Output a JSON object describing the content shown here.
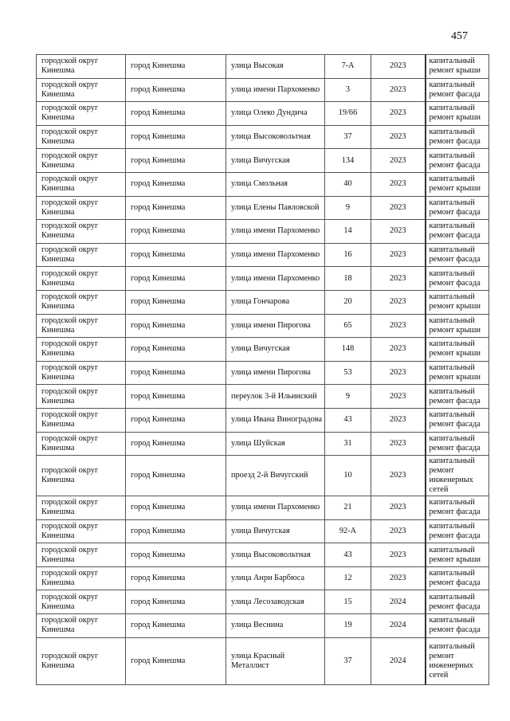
{
  "page_number": "457",
  "rows": [
    {
      "district": "городской округ Кинешма",
      "city": "город Кинешма",
      "street": "улица Высокая",
      "house": "7-А",
      "year": "2023",
      "work": "капитальный ремонт крыши"
    },
    {
      "district": "городской округ Кинешма",
      "city": "город Кинешма",
      "street": "улица имени Пархоменко",
      "house": "3",
      "year": "2023",
      "work": "капитальный ремонт фасада"
    },
    {
      "district": "городской округ Кинешма",
      "city": "город Кинешма",
      "street": "улица Олеко Дундича",
      "house": "19/66",
      "year": "2023",
      "work": "капитальный ремонт крыши"
    },
    {
      "district": "городской округ Кинешма",
      "city": "город Кинешма",
      "street": "улица Высоковольтная",
      "house": "37",
      "year": "2023",
      "work": "капитальный ремонт фасада"
    },
    {
      "district": "городской округ Кинешма",
      "city": "город Кинешма",
      "street": "улица Вичугская",
      "house": "134",
      "year": "2023",
      "work": "капитальный ремонт фасада"
    },
    {
      "district": "городской округ Кинешма",
      "city": "город Кинешма",
      "street": "улица Смольная",
      "house": "40",
      "year": "2023",
      "work": "капитальный ремонт крыши"
    },
    {
      "district": "городской округ Кинешма",
      "city": "город Кинешма",
      "street": "улица Елены Павловской",
      "house": "9",
      "year": "2023",
      "work": "капитальный ремонт фасада"
    },
    {
      "district": "городской округ Кинешма",
      "city": "город Кинешма",
      "street": "улица имени Пархоменко",
      "house": "14",
      "year": "2023",
      "work": "капитальный ремонт фасада"
    },
    {
      "district": "городской округ Кинешма",
      "city": "город Кинешма",
      "street": "улица имени Пархоменко",
      "house": "16",
      "year": "2023",
      "work": "капитальный ремонт фасада"
    },
    {
      "district": "городской округ Кинешма",
      "city": "город Кинешма",
      "street": "улица имени Пархоменко",
      "house": "18",
      "year": "2023",
      "work": "капитальный ремонт фасада"
    },
    {
      "district": "городской округ Кинешма",
      "city": "город Кинешма",
      "street": "улица Гончарова",
      "house": "20",
      "year": "2023",
      "work": "капитальный ремонт крыши"
    },
    {
      "district": "городской округ Кинешма",
      "city": "город Кинешма",
      "street": "улица имени Пирогова",
      "house": "65",
      "year": "2023",
      "work": "капитальный ремонт крыши"
    },
    {
      "district": "городской округ Кинешма",
      "city": "город Кинешма",
      "street": "улица Вичугская",
      "house": "148",
      "year": "2023",
      "work": "капитальный ремонт крыши"
    },
    {
      "district": "городской округ Кинешма",
      "city": "город Кинешма",
      "street": "улица имени Пирогова",
      "house": "53",
      "year": "2023",
      "work": "капитальный ремонт крыши"
    },
    {
      "district": "городской округ Кинешма",
      "city": "город Кинешма",
      "street": "переулок 3-й Ильинский",
      "house": "9",
      "year": "2023",
      "work": "капитальный ремонт фасада"
    },
    {
      "district": "городской округ Кинешма",
      "city": "город Кинешма",
      "street": "улица Ивана Виноградова",
      "house": "43",
      "year": "2023",
      "work": "капитальный ремонт фасада"
    },
    {
      "district": "городской округ Кинешма",
      "city": "город Кинешма",
      "street": "улица Шуйская",
      "house": "31",
      "year": "2023",
      "work": "капитальный ремонт фасада"
    },
    {
      "district": "городской округ Кинешма",
      "city": "город Кинешма",
      "street": "проезд 2-й Вичугский",
      "house": "10",
      "year": "2023",
      "work": "капитальный ремонт инженерных сетей"
    },
    {
      "district": "городской округ Кинешма",
      "city": "город Кинешма",
      "street": "улица имени Пархоменко",
      "house": "21",
      "year": "2023",
      "work": "капитальный ремонт фасада"
    },
    {
      "district": "городской округ Кинешма",
      "city": "город Кинешма",
      "street": "улица Вичугская",
      "house": "92-А",
      "year": "2023",
      "work": "капитальный ремонт фасада"
    },
    {
      "district": "городской округ Кинешма",
      "city": "город Кинешма",
      "street": "улица Высоковольтная",
      "house": "43",
      "year": "2023",
      "work": "капитальный ремонт крыши"
    },
    {
      "district": "городской округ Кинешма",
      "city": "город Кинешма",
      "street": "улица Анри Барбюса",
      "house": "12",
      "year": "2023",
      "work": "капитальный ремонт фасада"
    },
    {
      "district": "городской округ Кинешма",
      "city": "город Кинешма",
      "street": "улица Лесозаводская",
      "house": "15",
      "year": "2024",
      "work": "капитальный ремонт фасада"
    },
    {
      "district": "городской округ Кинешма",
      "city": "город Кинешма",
      "street": "улица Веснина",
      "house": "19",
      "year": "2024",
      "work": "капитальный ремонт фасада"
    },
    {
      "district": "городской округ Кинешма",
      "city": "город Кинешма",
      "street": "улица Красный Металлист",
      "house": "37",
      "year": "2024",
      "work": "капитальный ремонт инженерных сетей"
    }
  ]
}
